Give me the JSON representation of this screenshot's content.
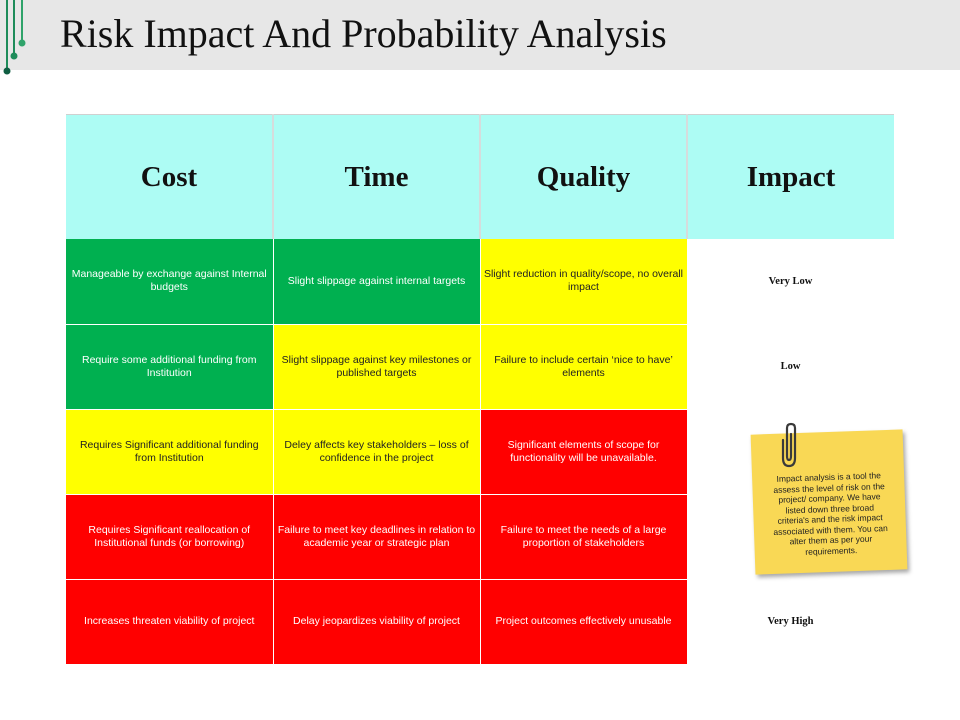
{
  "slide": {
    "title": "Risk Impact And Probability Analysis"
  },
  "table": {
    "headers": [
      "Cost",
      "Time",
      "Quality",
      "Impact"
    ],
    "rows": [
      {
        "cost": "Manageable by exchange against Internal budgets",
        "time": "Slight slippage against internal targets",
        "quality": "Slight reduction in quality/scope, no overall impact",
        "impact": "Very Low"
      },
      {
        "cost": "Require some additional funding from Institution",
        "time": "Slight slippage against key milestones or published targets",
        "quality": "Failure to include certain ‘nice to have’ elements",
        "impact": "Low"
      },
      {
        "cost": "Requires Significant additional funding from Institution",
        "time": "Deley affects key stakeholders – loss of confidence in the project",
        "quality": "Significant elements of scope for functionality will be unavailable.",
        "impact": ""
      },
      {
        "cost": "Requires Significant reallocation of Institutional funds (or borrowing)",
        "time": "Failure to meet key deadlines in relation to academic year or strategic plan",
        "quality": "Failure to meet the needs of a large proportion of stakeholders",
        "impact": ""
      },
      {
        "cost": "Increases threaten viability of project",
        "time": "Delay  jeopardizes viability of project",
        "quality": "Project outcomes effectively unusable",
        "impact": "Very High"
      }
    ]
  },
  "sticky_note": {
    "text": "Impact analysis is a tool the assess the level of risk on the project/ company. We have listed down three broad criteria's and the risk impact associated with them. You can alter them as per your requirements."
  },
  "colors": {
    "header_bg": "#adfcf4",
    "low_risk": "#00b050",
    "medium_risk": "#ffff00",
    "high_risk": "#ff0000",
    "note": "#f9d855",
    "accent_green": "#1e8c5a"
  },
  "icons": [
    "circuit-decoration-icon",
    "paperclip-icon"
  ]
}
